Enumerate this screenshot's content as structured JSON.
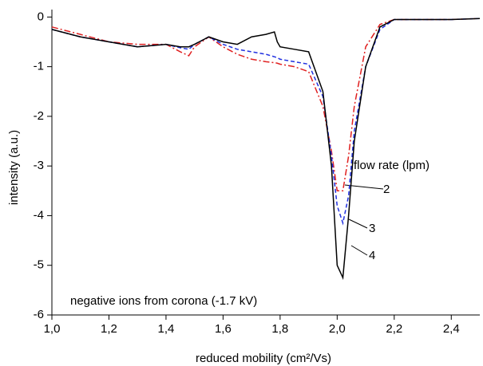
{
  "chart_data": {
    "type": "line",
    "xlabel": "reduced mobility  (cm²/Vs)",
    "ylabel": "intensity (a.u.)",
    "annotations": [
      "flow rate (lpm)",
      "negative ions from corona (-1.7 kV)"
    ],
    "x": [
      1.0,
      1.1,
      1.2,
      1.3,
      1.4,
      1.45,
      1.48,
      1.5,
      1.55,
      1.6,
      1.65,
      1.7,
      1.75,
      1.78,
      1.79,
      1.8,
      1.85,
      1.9,
      1.95,
      1.98,
      2.0,
      2.02,
      2.04,
      2.06,
      2.1,
      2.15,
      2.2,
      2.3,
      2.4,
      2.5
    ],
    "series": [
      {
        "name": "2",
        "color": "#e02020",
        "dash": "8 3 2 3",
        "values": [
          -0.2,
          -0.35,
          -0.5,
          -0.55,
          -0.55,
          -0.7,
          -0.78,
          -0.6,
          -0.4,
          -0.6,
          -0.75,
          -0.85,
          -0.9,
          -0.92,
          -0.93,
          -0.95,
          -1.0,
          -1.1,
          -1.8,
          -2.7,
          -3.5,
          -3.5,
          -2.8,
          -1.8,
          -0.6,
          -0.15,
          -0.05,
          -0.05,
          -0.05,
          -0.03
        ]
      },
      {
        "name": "3",
        "color": "#2030e0",
        "dash": "5 3",
        "values": [
          -0.25,
          -0.4,
          -0.5,
          -0.6,
          -0.55,
          -0.62,
          -0.65,
          -0.55,
          -0.4,
          -0.55,
          -0.65,
          -0.7,
          -0.75,
          -0.8,
          -0.82,
          -0.85,
          -0.9,
          -0.95,
          -1.6,
          -2.8,
          -3.8,
          -4.15,
          -3.6,
          -2.3,
          -1.0,
          -0.25,
          -0.05,
          -0.05,
          -0.05,
          -0.03
        ]
      },
      {
        "name": "4",
        "color": "#000000",
        "dash": "none",
        "values": [
          -0.25,
          -0.4,
          -0.5,
          -0.6,
          -0.55,
          -0.6,
          -0.6,
          -0.55,
          -0.4,
          -0.5,
          -0.55,
          -0.4,
          -0.35,
          -0.3,
          -0.5,
          -0.6,
          -0.65,
          -0.7,
          -1.5,
          -3.0,
          -5.0,
          -5.25,
          -4.0,
          -2.5,
          -1.0,
          -0.2,
          -0.05,
          -0.05,
          -0.05,
          -0.03
        ]
      }
    ],
    "xlim": [
      1.0,
      2.5
    ],
    "xticks": [
      {
        "value": 1.0,
        "label": "1,0"
      },
      {
        "value": 1.2,
        "label": "1,2"
      },
      {
        "value": 1.4,
        "label": "1,4"
      },
      {
        "value": 1.6,
        "label": "1,6"
      },
      {
        "value": 1.8,
        "label": "1,8"
      },
      {
        "value": 2.0,
        "label": "2,0"
      },
      {
        "value": 2.2,
        "label": "2,2"
      },
      {
        "value": 2.4,
        "label": "2,4"
      }
    ],
    "ylim": [
      -6,
      0.15
    ],
    "yticks": [
      -6,
      -5,
      -4,
      -3,
      -2,
      -1,
      0
    ]
  }
}
